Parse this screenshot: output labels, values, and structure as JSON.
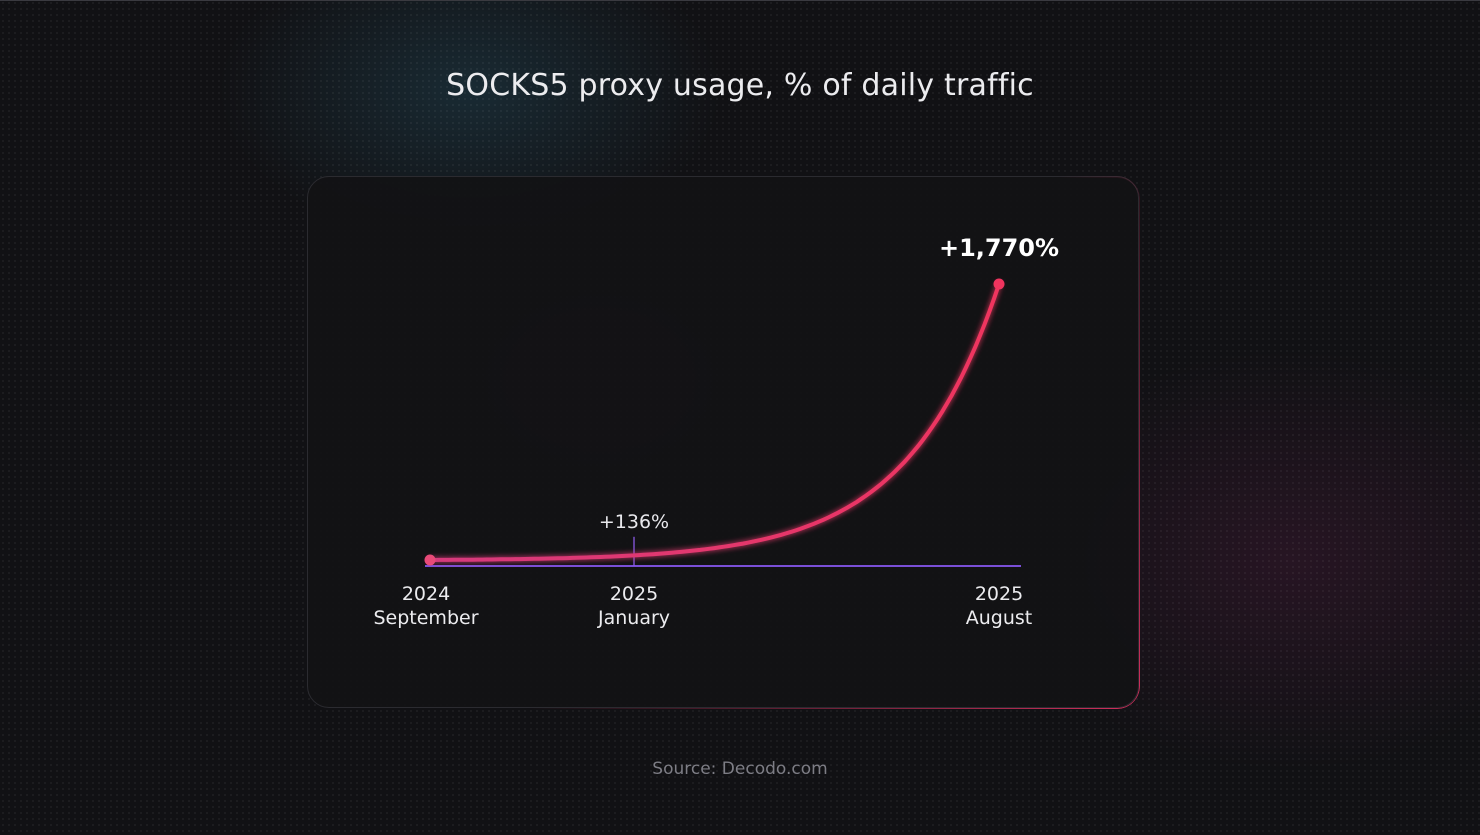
{
  "title": "SOCKS5 proxy usage, % of daily traffic",
  "source": "Source: Decodo.com",
  "colors": {
    "line_start": "#d63a7d",
    "line_end": "#f0345e",
    "marker": "#e84a78",
    "axis": "#7a4fd8",
    "drop_line": "#8c5ae8"
  },
  "chart_data": {
    "type": "line",
    "title": "SOCKS5 proxy usage, % of daily traffic",
    "xlabel": "",
    "ylabel": "",
    "x": [
      "2024 September",
      "2025 January",
      "2025 August"
    ],
    "x_ticks": [
      {
        "year": "2024",
        "month": "September"
      },
      {
        "year": "2025",
        "month": "January"
      },
      {
        "year": "2025",
        "month": "August"
      }
    ],
    "values": [
      0,
      136,
      1770
    ],
    "value_labels": [
      "",
      "+136%",
      "+1,770%"
    ],
    "grid": false,
    "legend": "none"
  }
}
